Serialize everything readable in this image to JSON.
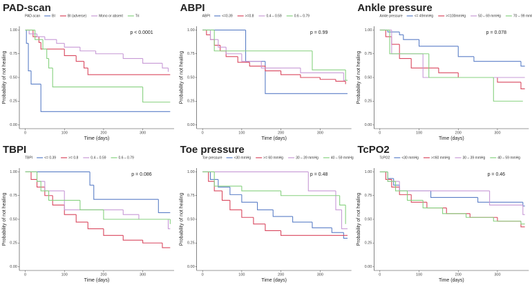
{
  "chart_data": [
    {
      "type": "line",
      "title": "PAD-scan",
      "legend_title": "PAD-scan",
      "p_value": "p < 0.0001",
      "xlabel": "Time (days)",
      "ylabel": "Probability of not healing",
      "xlim": [
        -15,
        380
      ],
      "ylim": [
        -0.04,
        1.04
      ],
      "xticks": [
        0,
        100,
        200,
        300
      ],
      "yticks": [
        {
          "value": 0,
          "label": "0.00"
        },
        {
          "value": 0.25,
          "label": "0.25"
        },
        {
          "value": 0.5,
          "label": "0.50"
        },
        {
          "value": 0.75,
          "label": "0.75"
        },
        {
          "value": 1,
          "label": "1.00"
        }
      ],
      "series": [
        {
          "name": "BI",
          "color": "#5b7fc7",
          "x": [
            0,
            3,
            8,
            15,
            40,
            370
          ],
          "values": [
            1,
            0.86,
            0.57,
            0.43,
            0.14,
            0.14
          ]
        },
        {
          "name": "BI (adverse)",
          "color": "#d9475e",
          "x": [
            0,
            20,
            35,
            40,
            100,
            130,
            150,
            160,
            370
          ],
          "values": [
            1,
            0.93,
            0.87,
            0.8,
            0.73,
            0.67,
            0.6,
            0.53,
            0.53
          ]
        },
        {
          "name": "Mono or absent",
          "color": "#c799d6",
          "x": [
            0,
            10,
            30,
            50,
            80,
            100,
            140,
            180,
            250,
            300,
            350,
            365
          ],
          "values": [
            1,
            0.96,
            0.93,
            0.9,
            0.86,
            0.82,
            0.78,
            0.75,
            0.7,
            0.65,
            0.6,
            0.56
          ]
        },
        {
          "name": "Tri",
          "color": "#86d17f",
          "x": [
            0,
            25,
            45,
            55,
            60,
            70,
            300,
            370
          ],
          "values": [
            1,
            0.9,
            0.8,
            0.7,
            0.6,
            0.4,
            0.24,
            0.24
          ]
        }
      ]
    },
    {
      "type": "line",
      "title": "ABPI",
      "legend_title": "ABPI",
      "p_value": "p = 0.99",
      "xlabel": "Time (days)",
      "ylabel": "Probability of not healing",
      "xlim": [
        -15,
        380
      ],
      "ylim": [
        -0.04,
        1.04
      ],
      "xticks": [
        0,
        100,
        200,
        300
      ],
      "yticks": [
        {
          "value": 0,
          "label": "0.00"
        },
        {
          "value": 0.25,
          "label": "0.25"
        },
        {
          "value": 0.5,
          "label": "0.50"
        },
        {
          "value": 0.75,
          "label": "0.75"
        },
        {
          "value": 1,
          "label": "1.00"
        }
      ],
      "series": [
        {
          "name": "<=0.39",
          "color": "#5b7fc7",
          "x": [
            0,
            110,
            160,
            370
          ],
          "values": [
            1,
            0.67,
            0.33,
            0.33
          ]
        },
        {
          "name": ">=0.8",
          "color": "#d9475e",
          "x": [
            0,
            10,
            20,
            30,
            45,
            60,
            90,
            120,
            160,
            200,
            250,
            300,
            340,
            365
          ],
          "values": [
            1,
            0.95,
            0.9,
            0.84,
            0.78,
            0.72,
            0.66,
            0.62,
            0.57,
            0.53,
            0.5,
            0.48,
            0.46,
            0.43
          ]
        },
        {
          "name": "0.4 – 0.59",
          "color": "#c799d6",
          "x": [
            0,
            20,
            40,
            60,
            100,
            150,
            250,
            360,
            370
          ],
          "values": [
            1,
            0.9,
            0.82,
            0.75,
            0.67,
            0.6,
            0.55,
            0.47,
            0.47
          ]
        },
        {
          "name": "0.6 – 0.79",
          "color": "#86d17f",
          "x": [
            0,
            30,
            280,
            365,
            370
          ],
          "values": [
            1,
            0.78,
            0.58,
            0.47,
            0.47
          ]
        }
      ]
    },
    {
      "type": "line",
      "title": "Ankle pressure",
      "legend_title": "Ankle pressure",
      "p_value": "p = 0.078",
      "xlabel": "Time (days)",
      "ylabel": "Probability of not healing",
      "xlim": [
        -15,
        380
      ],
      "ylim": [
        -0.04,
        1.04
      ],
      "xticks": [
        0,
        100,
        200,
        300
      ],
      "yticks": [
        {
          "value": 0,
          "label": "0.00"
        },
        {
          "value": 0.25,
          "label": "0.25"
        },
        {
          "value": 0.5,
          "label": "0.50"
        },
        {
          "value": 0.75,
          "label": "0.75"
        },
        {
          "value": 1,
          "label": "1.00"
        }
      ],
      "series": [
        {
          "name": "<= 49mmHg",
          "color": "#5b7fc7",
          "x": [
            0,
            20,
            50,
            60,
            100,
            200,
            240,
            360,
            370
          ],
          "values": [
            1,
            0.98,
            0.95,
            0.9,
            0.83,
            0.72,
            0.67,
            0.62,
            0.62
          ]
        },
        {
          "name": ">=100mmHg",
          "color": "#d9475e",
          "x": [
            0,
            15,
            30,
            50,
            80,
            150,
            200,
            300,
            360,
            370
          ],
          "values": [
            1,
            0.93,
            0.85,
            0.7,
            0.6,
            0.55,
            0.5,
            0.45,
            0.38,
            0.38
          ]
        },
        {
          "name": "50 – 69 mmHg",
          "color": "#c799d6",
          "x": [
            0,
            30,
            110,
            370
          ],
          "values": [
            1,
            0.75,
            0.5,
            0.5
          ]
        },
        {
          "name": "70 – 99 mmHg",
          "color": "#86d17f",
          "x": [
            0,
            25,
            125,
            290,
            365
          ],
          "values": [
            1,
            0.75,
            0.5,
            0.25,
            0.25
          ]
        }
      ]
    },
    {
      "type": "line",
      "title": "TBPI",
      "legend_title": "TBPI",
      "p_value": "p = 0.086",
      "xlabel": "Time (days)",
      "ylabel": "Probability of not healing",
      "xlim": [
        -15,
        380
      ],
      "ylim": [
        -0.04,
        1.04
      ],
      "xticks": [
        0,
        100,
        200,
        300
      ],
      "yticks": [
        {
          "value": 0,
          "label": "0.00"
        },
        {
          "value": 0.25,
          "label": "0.25"
        },
        {
          "value": 0.5,
          "label": "0.50"
        },
        {
          "value": 0.75,
          "label": "0.75"
        },
        {
          "value": 1,
          "label": "1.00"
        }
      ],
      "series": [
        {
          "name": "<= 0.39",
          "color": "#5b7fc7",
          "x": [
            0,
            165,
            175,
            340,
            370
          ],
          "values": [
            1,
            0.86,
            0.71,
            0.57,
            0.57
          ]
        },
        {
          "name": ">= 0.8",
          "color": "#d9475e",
          "x": [
            0,
            15,
            30,
            50,
            70,
            100,
            130,
            160,
            200,
            250,
            300,
            350,
            370
          ],
          "values": [
            1,
            0.92,
            0.84,
            0.75,
            0.65,
            0.55,
            0.47,
            0.4,
            0.33,
            0.28,
            0.25,
            0.2,
            0.2
          ]
        },
        {
          "name": "0.4 – 0.59",
          "color": "#c799d6",
          "x": [
            0,
            30,
            50,
            100,
            250,
            290,
            365,
            370
          ],
          "values": [
            1,
            0.9,
            0.8,
            0.6,
            0.55,
            0.5,
            0.4,
            0.4
          ]
        },
        {
          "name": "0.6 – 0.79",
          "color": "#86d17f",
          "x": [
            0,
            30,
            40,
            60,
            140,
            200,
            370
          ],
          "values": [
            1,
            0.9,
            0.8,
            0.7,
            0.6,
            0.5,
            0.45
          ]
        }
      ]
    },
    {
      "type": "line",
      "title": "Toe pressure",
      "legend_title": "Toe pressure",
      "p_value": "p = 0.48",
      "xlabel": "Time (days)",
      "ylabel": "Probability of not healing",
      "xlim": [
        -15,
        380
      ],
      "ylim": [
        -0.04,
        1.04
      ],
      "xticks": [
        0,
        100,
        200,
        300
      ],
      "yticks": [
        {
          "value": 0,
          "label": "0.00"
        },
        {
          "value": 0.25,
          "label": "0.25"
        },
        {
          "value": 0.5,
          "label": "0.50"
        },
        {
          "value": 0.75,
          "label": "0.75"
        },
        {
          "value": 1,
          "label": "1.00"
        }
      ],
      "series": [
        {
          "name": "<30 mmHg",
          "color": "#5b7fc7",
          "x": [
            0,
            20,
            40,
            70,
            100,
            140,
            180,
            230,
            280,
            330,
            360,
            370
          ],
          "values": [
            1,
            0.92,
            0.84,
            0.76,
            0.68,
            0.6,
            0.53,
            0.47,
            0.41,
            0.36,
            0.3,
            0.3
          ]
        },
        {
          "name": ">= 60 mmHg",
          "color": "#d9475e",
          "x": [
            0,
            15,
            30,
            50,
            70,
            100,
            130,
            160,
            200,
            370
          ],
          "values": [
            1,
            0.9,
            0.8,
            0.7,
            0.6,
            0.52,
            0.45,
            0.38,
            0.33,
            0.33
          ]
        },
        {
          "name": "30 – 39 mmHg",
          "color": "#c799d6",
          "x": [
            0,
            270,
            340,
            355,
            370
          ],
          "values": [
            1,
            0.8,
            0.6,
            0.4,
            0.4
          ]
        },
        {
          "name": "40 – 59 mmHg",
          "color": "#86d17f",
          "x": [
            0,
            30,
            100,
            200,
            350,
            365
          ],
          "values": [
            1,
            0.85,
            0.8,
            0.75,
            0.65,
            0.45
          ]
        }
      ]
    },
    {
      "type": "line",
      "title": "TcPO2",
      "legend_title": "TcPO2",
      "p_value": "p = 0.46",
      "xlabel": "Time (days)",
      "ylabel": "Probability of not healing",
      "xlim": [
        -15,
        380
      ],
      "ylim": [
        -0.04,
        1.04
      ],
      "xticks": [
        0,
        100,
        200,
        300
      ],
      "yticks": [
        {
          "value": 0,
          "label": "0.00"
        },
        {
          "value": 0.25,
          "label": "0.25"
        },
        {
          "value": 0.5,
          "label": "0.50"
        },
        {
          "value": 0.75,
          "label": "0.75"
        },
        {
          "value": 1,
          "label": "1.00"
        }
      ],
      "series": [
        {
          "name": "<30 mmHg",
          "color": "#5b7fc7",
          "x": [
            0,
            20,
            35,
            50,
            130,
            250,
            365,
            370
          ],
          "values": [
            1,
            0.93,
            0.86,
            0.8,
            0.73,
            0.68,
            0.64,
            0.64
          ]
        },
        {
          "name": ">=60 mmHg",
          "color": "#d9475e",
          "x": [
            0,
            15,
            30,
            50,
            80,
            120,
            170,
            230,
            300,
            360,
            370
          ],
          "values": [
            1,
            0.92,
            0.84,
            0.76,
            0.68,
            0.62,
            0.56,
            0.52,
            0.48,
            0.42,
            0.42
          ]
        },
        {
          "name": "30 – 39 mmHg",
          "color": "#c799d6",
          "x": [
            0,
            20,
            50,
            280,
            365,
            370
          ],
          "values": [
            1,
            0.9,
            0.8,
            0.65,
            0.55,
            0.55
          ]
        },
        {
          "name": "40 – 59 mmHg",
          "color": "#86d17f",
          "x": [
            0,
            20,
            40,
            70,
            110,
            160,
            220,
            290,
            360,
            370
          ],
          "values": [
            1,
            0.9,
            0.8,
            0.7,
            0.62,
            0.56,
            0.52,
            0.48,
            0.45,
            0.45
          ]
        }
      ]
    }
  ]
}
